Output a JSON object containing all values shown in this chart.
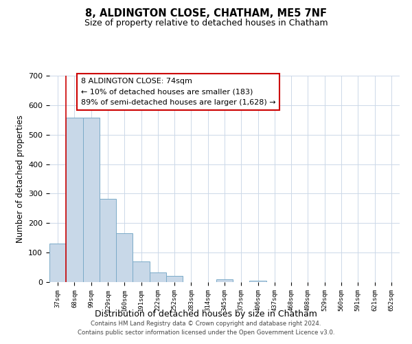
{
  "title": "8, ALDINGTON CLOSE, CHATHAM, ME5 7NF",
  "subtitle": "Size of property relative to detached houses in Chatham",
  "xlabel": "Distribution of detached houses by size in Chatham",
  "ylabel": "Number of detached properties",
  "bar_labels": [
    "37sqm",
    "68sqm",
    "99sqm",
    "129sqm",
    "160sqm",
    "191sqm",
    "222sqm",
    "252sqm",
    "283sqm",
    "314sqm",
    "345sqm",
    "375sqm",
    "406sqm",
    "437sqm",
    "468sqm",
    "498sqm",
    "529sqm",
    "560sqm",
    "591sqm",
    "621sqm",
    "652sqm"
  ],
  "bar_values": [
    130,
    558,
    558,
    283,
    165,
    70,
    33,
    20,
    0,
    0,
    10,
    0,
    5,
    0,
    0,
    0,
    0,
    0,
    0,
    0,
    0
  ],
  "bar_color": "#c8d8e8",
  "bar_edge_color": "#7aaac8",
  "ylim": [
    0,
    700
  ],
  "yticks": [
    0,
    100,
    200,
    300,
    400,
    500,
    600,
    700
  ],
  "annotation_title": "8 ALDINGTON CLOSE: 74sqm",
  "annotation_line1": "← 10% of detached houses are smaller (183)",
  "annotation_line2": "89% of semi-detached houses are larger (1,628) →",
  "annotation_box_color": "#ffffff",
  "annotation_box_edge": "#cc0000",
  "red_line_color": "#cc0000",
  "footer_line1": "Contains HM Land Registry data © Crown copyright and database right 2024.",
  "footer_line2": "Contains public sector information licensed under the Open Government Licence v3.0.",
  "bg_color": "#ffffff",
  "grid_color": "#ccd8e8"
}
